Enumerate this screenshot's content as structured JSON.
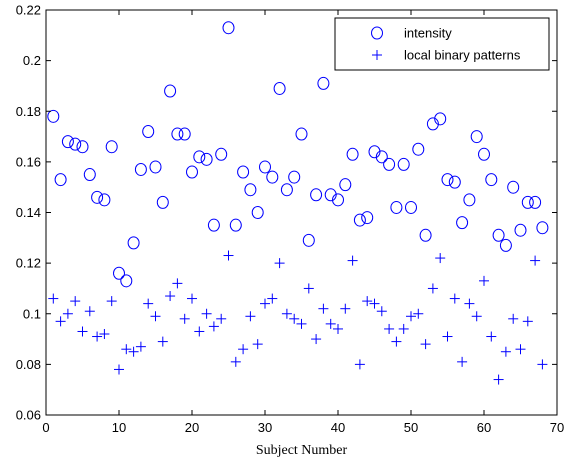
{
  "chart_data": {
    "type": "scatter",
    "title": "",
    "xlabel": "Subject Number",
    "ylabel": "",
    "xlim": [
      0,
      70
    ],
    "ylim": [
      0.06,
      0.22
    ],
    "xticks": [
      0,
      10,
      20,
      30,
      40,
      50,
      60,
      70
    ],
    "yticks": [
      0.06,
      0.08,
      0.1,
      0.12,
      0.14,
      0.16,
      0.18,
      0.2,
      0.22
    ],
    "xtick_labels": [
      "0",
      "10",
      "20",
      "30",
      "40",
      "50",
      "60",
      "70"
    ],
    "ytick_labels": [
      "0.06",
      "0.08",
      "0.1",
      "0.12",
      "0.14",
      "0.16",
      "0.18",
      "0.2",
      "0.22"
    ],
    "grid": false,
    "legend_position": "top-right",
    "colors": {
      "marker": "#0000ff",
      "axis": "#000000"
    },
    "series": [
      {
        "name": "intensity",
        "marker": "circle",
        "x": [
          1,
          2,
          3,
          4,
          5,
          6,
          7,
          8,
          9,
          10,
          11,
          12,
          13,
          14,
          15,
          16,
          17,
          18,
          19,
          20,
          21,
          22,
          23,
          24,
          25,
          26,
          27,
          28,
          29,
          30,
          31,
          32,
          33,
          34,
          35,
          36,
          37,
          38,
          39,
          40,
          41,
          42,
          43,
          44,
          45,
          46,
          47,
          48,
          49,
          50,
          51,
          52,
          53,
          54,
          55,
          56,
          57,
          58,
          59,
          60,
          61,
          62,
          63,
          64,
          65,
          66,
          67,
          68
        ],
        "values": [
          0.178,
          0.153,
          0.168,
          0.167,
          0.166,
          0.155,
          0.146,
          0.145,
          0.166,
          0.116,
          0.113,
          0.128,
          0.157,
          0.172,
          0.158,
          0.144,
          0.188,
          0.171,
          0.171,
          0.156,
          0.162,
          0.161,
          0.135,
          0.163,
          0.213,
          0.135,
          0.156,
          0.149,
          0.14,
          0.158,
          0.154,
          0.189,
          0.149,
          0.154,
          0.171,
          0.129,
          0.147,
          0.191,
          0.147,
          0.145,
          0.151,
          0.163,
          0.137,
          0.138,
          0.164,
          0.162,
          0.159,
          0.142,
          0.159,
          0.142,
          0.165,
          0.131,
          0.175,
          0.177,
          0.153,
          0.152,
          0.136,
          0.145,
          0.17,
          0.163,
          0.153,
          0.131,
          0.127,
          0.15,
          0.133,
          0.144,
          0.144,
          0.134
        ]
      },
      {
        "name": "local binary patterns",
        "marker": "plus",
        "x": [
          1,
          2,
          3,
          4,
          5,
          6,
          7,
          8,
          9,
          10,
          11,
          12,
          13,
          14,
          15,
          16,
          17,
          18,
          19,
          20,
          21,
          22,
          23,
          24,
          25,
          26,
          27,
          28,
          29,
          30,
          31,
          32,
          33,
          34,
          35,
          36,
          37,
          38,
          39,
          40,
          41,
          42,
          43,
          44,
          45,
          46,
          47,
          48,
          49,
          50,
          51,
          52,
          53,
          54,
          55,
          56,
          57,
          58,
          59,
          60,
          61,
          62,
          63,
          64,
          65,
          66,
          67,
          68
        ],
        "values": [
          0.106,
          0.097,
          0.1,
          0.105,
          0.093,
          0.101,
          0.091,
          0.092,
          0.105,
          0.078,
          0.086,
          0.085,
          0.087,
          0.104,
          0.099,
          0.089,
          0.107,
          0.112,
          0.098,
          0.106,
          0.093,
          0.1,
          0.095,
          0.098,
          0.123,
          0.081,
          0.086,
          0.099,
          0.088,
          0.104,
          0.106,
          0.12,
          0.1,
          0.098,
          0.096,
          0.11,
          0.09,
          0.102,
          0.096,
          0.094,
          0.102,
          0.121,
          0.08,
          0.105,
          0.104,
          0.101,
          0.094,
          0.089,
          0.094,
          0.099,
          0.1,
          0.088,
          0.11,
          0.122,
          0.091,
          0.106,
          0.081,
          0.104,
          0.099,
          0.113,
          0.091,
          0.074,
          0.085,
          0.098,
          0.086,
          0.097,
          0.121,
          0.08
        ]
      }
    ]
  }
}
